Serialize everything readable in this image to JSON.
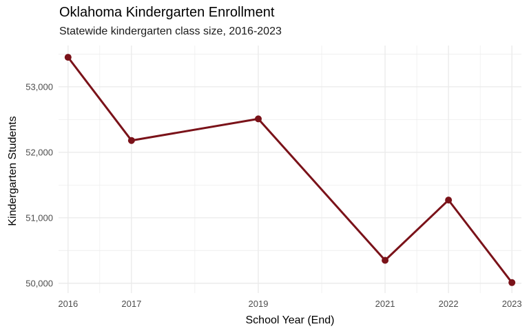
{
  "chart_data": {
    "type": "line",
    "title": "Oklahoma Kindergarten Enrollment",
    "subtitle": "Statewide kindergarten class size, 2016-2023",
    "xlabel": "School Year (End)",
    "ylabel": "Kindergarten Students",
    "x": [
      2016,
      2017,
      2019,
      2021,
      2022,
      2023
    ],
    "series": [
      {
        "values": [
          53450,
          52180,
          52510,
          50350,
          51270,
          50010
        ]
      }
    ],
    "xlim": [
      2015.85,
      2023.15
    ],
    "ylim": [
      49850,
      53630
    ],
    "x_ticks": [
      2016,
      2017,
      2019,
      2021,
      2022,
      2023
    ],
    "x_tick_labels": [
      "2016",
      "2017",
      "2019",
      "2021",
      "2022",
      "2023"
    ],
    "y_ticks": [
      50000,
      51000,
      52000,
      53000
    ],
    "y_tick_labels": [
      "50,000",
      "51,000",
      "52,000",
      "53,000"
    ],
    "grid": true,
    "legend": "none",
    "line_color": "#7a1219",
    "grid_color": "#ebebeb"
  }
}
